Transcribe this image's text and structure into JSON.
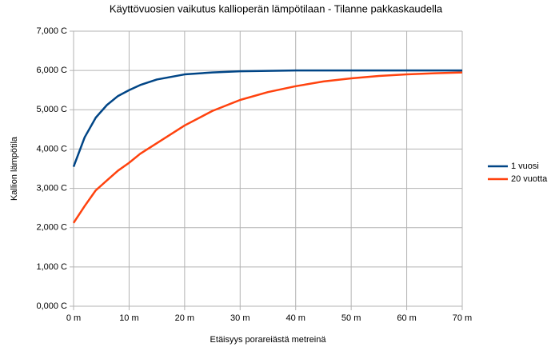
{
  "chart_data": {
    "type": "line",
    "title": "Käyttövuosien vaikutus kallioperän lämpötilaan - Tilanne pakkaskaudella",
    "x_label": "Etäisyys porareiästä metreinä",
    "y_label": "Kallion lämpötila",
    "x": [
      0,
      2,
      4,
      6,
      8,
      10,
      12,
      15,
      20,
      25,
      30,
      35,
      40,
      45,
      50,
      55,
      60,
      65,
      70
    ],
    "series": [
      {
        "name": "1 vuosi",
        "color": "#004586",
        "values": [
          3.55,
          4.3,
          4.8,
          5.12,
          5.35,
          5.5,
          5.63,
          5.77,
          5.9,
          5.95,
          5.98,
          5.99,
          6.0,
          6.0,
          6.0,
          6.0,
          6.0,
          6.0,
          6.0
        ]
      },
      {
        "name": "20 vuotta",
        "color": "#ff420e",
        "values": [
          2.12,
          2.55,
          2.95,
          3.2,
          3.45,
          3.65,
          3.88,
          4.15,
          4.6,
          4.97,
          5.25,
          5.45,
          5.6,
          5.72,
          5.8,
          5.86,
          5.9,
          5.93,
          5.95
        ]
      }
    ],
    "xlim": [
      0,
      70
    ],
    "xticks": [
      {
        "value": 0,
        "label": "0 m"
      },
      {
        "value": 10,
        "label": "10 m"
      },
      {
        "value": 20,
        "label": "20 m"
      },
      {
        "value": 30,
        "label": "30 m"
      },
      {
        "value": 40,
        "label": "40 m"
      },
      {
        "value": 50,
        "label": "50 m"
      },
      {
        "value": 60,
        "label": "60 m"
      },
      {
        "value": 70,
        "label": "70 m"
      }
    ],
    "ylim": [
      0,
      7
    ],
    "yticks": [
      {
        "value": 0,
        "label": "0,000 C"
      },
      {
        "value": 1,
        "label": "1,000 C"
      },
      {
        "value": 2,
        "label": "2,000 C"
      },
      {
        "value": 3,
        "label": "3,000 C"
      },
      {
        "value": 4,
        "label": "4,000 C"
      },
      {
        "value": 5,
        "label": "5,000 C"
      },
      {
        "value": 6,
        "label": "6,000 C"
      },
      {
        "value": 7,
        "label": "7,000 C"
      }
    ],
    "grid": true,
    "legend": "right"
  }
}
